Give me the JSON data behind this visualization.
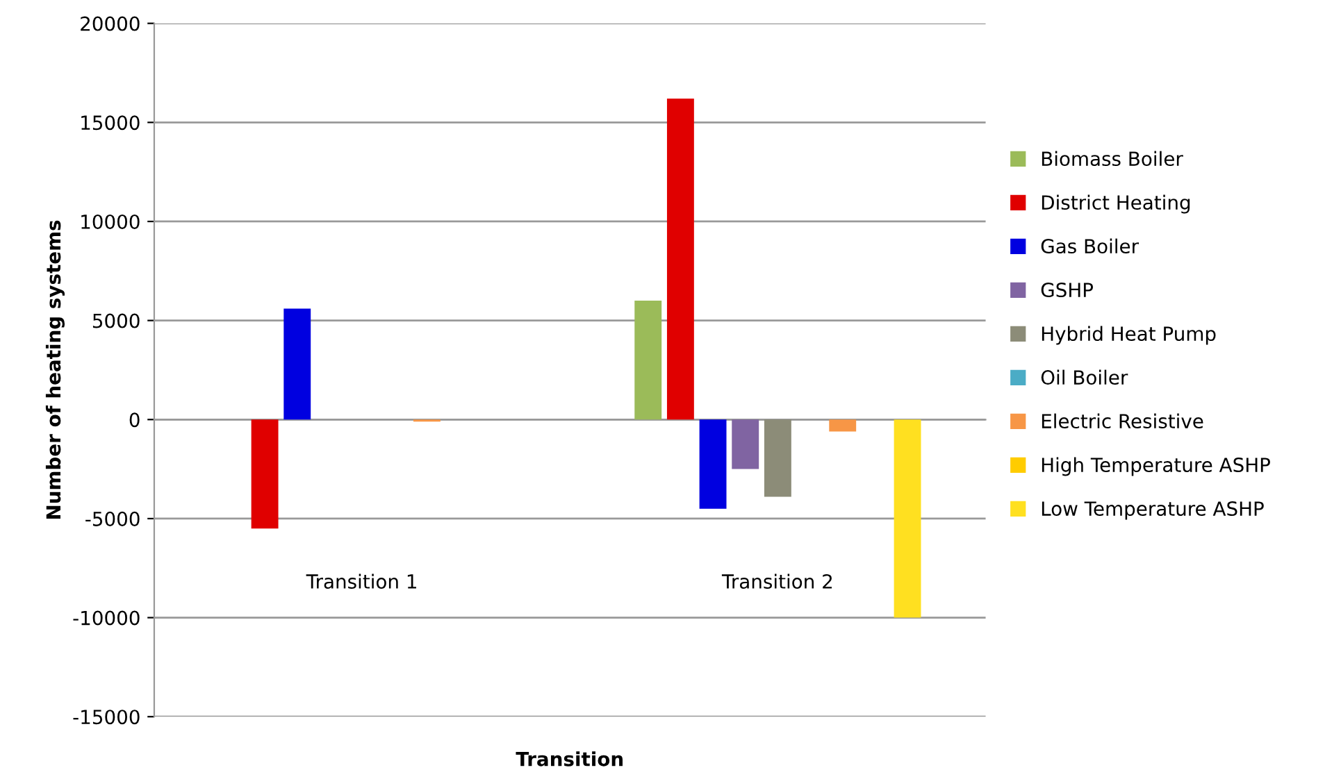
{
  "chart_data": {
    "type": "bar",
    "xlabel": "Transition",
    "ylabel": "Number of heating systems",
    "categories": [
      "Transition 1",
      "Transition 2"
    ],
    "series": [
      {
        "name": "Biomass Boiler",
        "color": "#9bbb59",
        "values": [
          0,
          6000
        ]
      },
      {
        "name": "District Heating",
        "color": "#e00000",
        "values": [
          -5500,
          16200
        ]
      },
      {
        "name": "Gas Boiler",
        "color": "#0000e0",
        "values": [
          5600,
          -4500
        ]
      },
      {
        "name": "GSHP",
        "color": "#8064a2",
        "values": [
          0,
          -2500
        ]
      },
      {
        "name": "Hybrid Heat Pump",
        "color": "#8c8c78",
        "values": [
          0,
          -3900
        ]
      },
      {
        "name": "Oil Boiler",
        "color": "#4bacc6",
        "values": [
          0,
          0
        ]
      },
      {
        "name": "Electric Resistive",
        "color": "#f79646",
        "values": [
          -100,
          -600
        ]
      },
      {
        "name": "High Temperature ASHP",
        "color": "#ffcc00",
        "values": [
          0,
          0
        ]
      },
      {
        "name": "Low Temperature ASHP",
        "color": "#ffe020",
        "values": [
          0,
          -10000
        ]
      }
    ],
    "ylim": [
      -15000,
      20000
    ],
    "yticks": [
      -15000,
      -10000,
      -5000,
      0,
      5000,
      10000,
      15000,
      20000
    ],
    "grid": "y",
    "legend": "right"
  }
}
